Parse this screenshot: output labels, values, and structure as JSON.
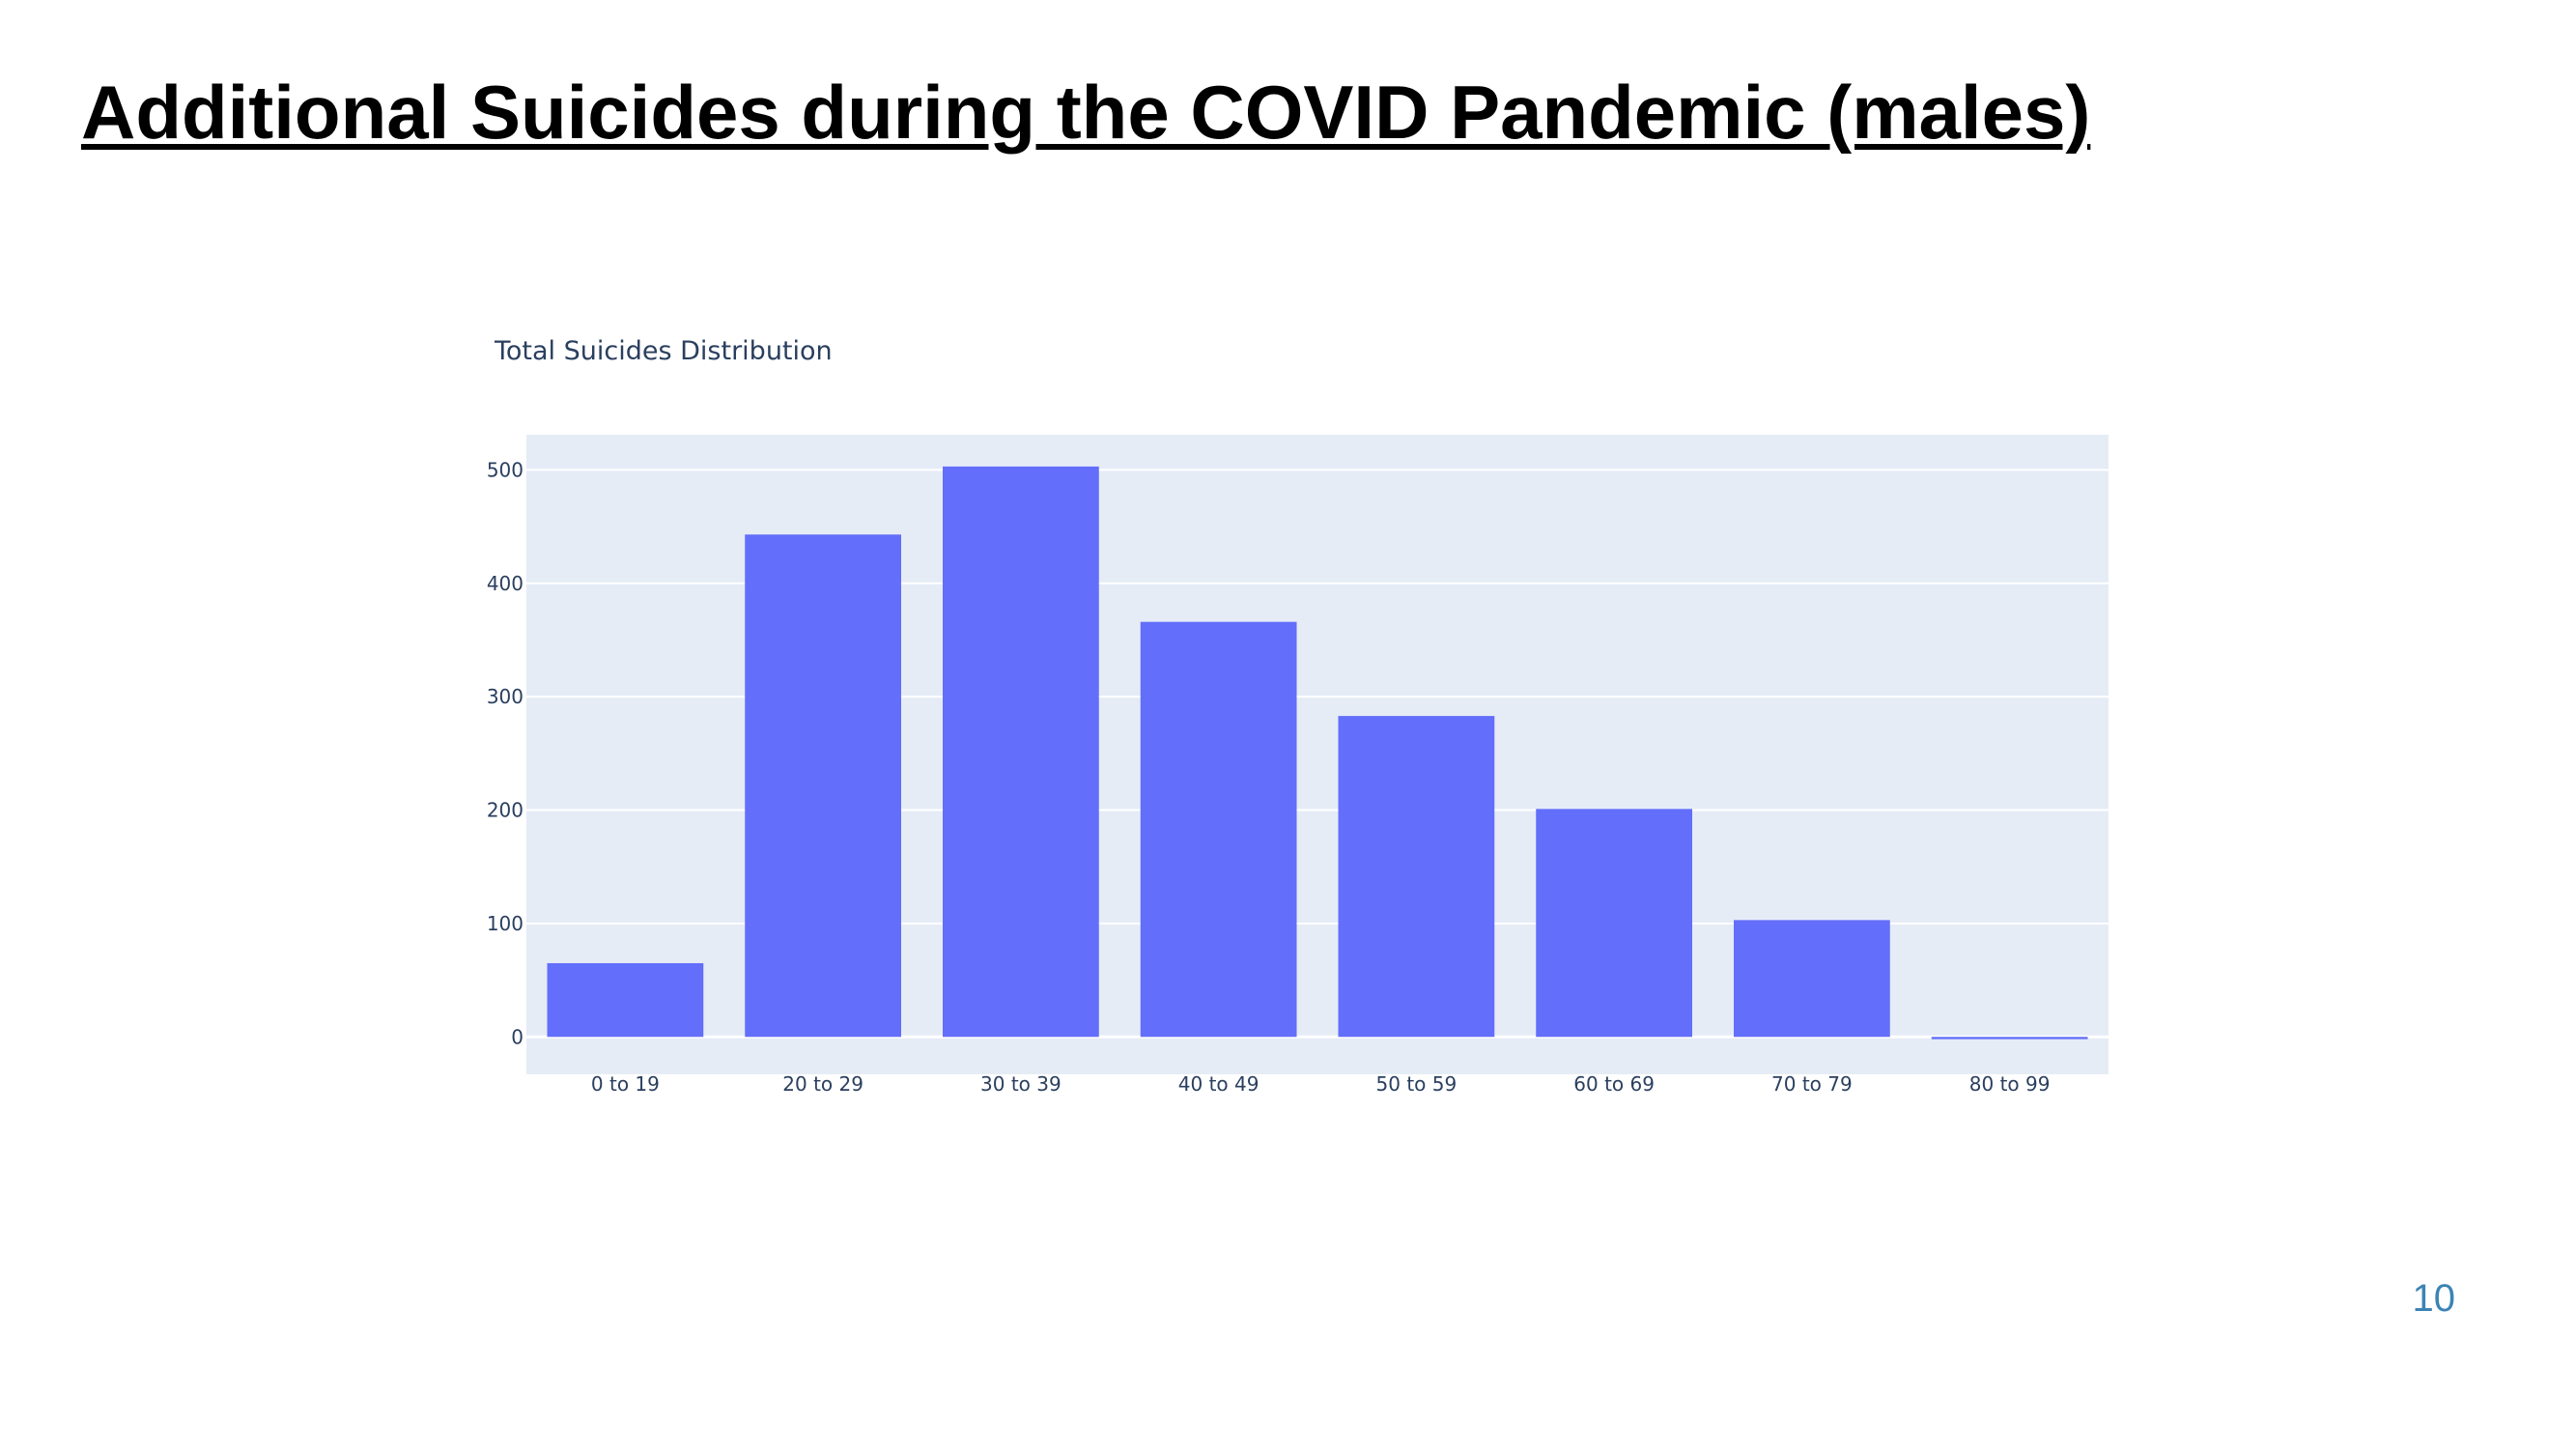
{
  "slide": {
    "title": "Additional Suicides during the COVID Pandemic (males)",
    "page_number": "10"
  },
  "colors": {
    "bar": "#636efa",
    "plot_background": "#e5ecf6",
    "grid": "#ffffff",
    "text": "#2a3f5f",
    "page_number": "#3c84b4"
  },
  "chart_data": {
    "type": "bar",
    "title": "Total Suicides Distribution",
    "xlabel": "",
    "ylabel": "",
    "categories": [
      "0 to 19",
      "20 to 29",
      "30 to 39",
      "40 to 49",
      "50 to 59",
      "60 to 69",
      "70 to 79",
      "80 to 99"
    ],
    "values": [
      65,
      443,
      503,
      366,
      283,
      201,
      103,
      -2
    ],
    "ylim": [
      -33,
      531
    ],
    "yticks": [
      0,
      100,
      200,
      300,
      400,
      500
    ],
    "grid": true,
    "legend": "none"
  }
}
